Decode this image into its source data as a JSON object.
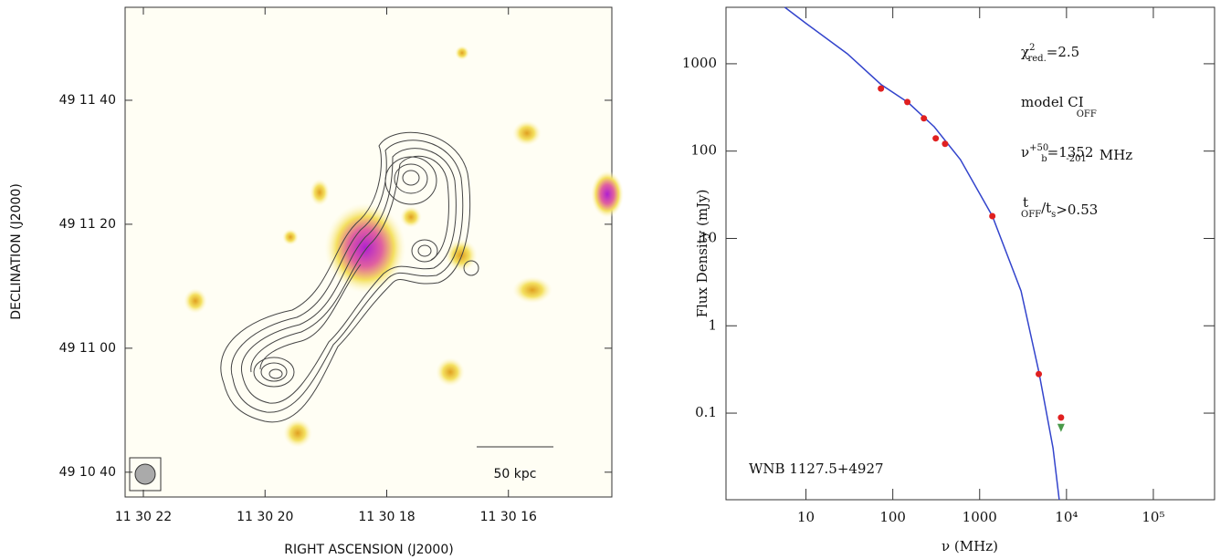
{
  "chart_data": [
    {
      "type": "image",
      "xlabel": "RIGHT ASCENSION (J2000)",
      "ylabel": "DECLINATION (J2000)",
      "xlim": [
        22.3,
        14.3
      ],
      "ylim": [
        36,
        115
      ],
      "xticks": [
        {
          "value": 22,
          "label": "11 30 22"
        },
        {
          "value": 20,
          "label": "11 30 20"
        },
        {
          "value": 18,
          "label": "11 30 18"
        },
        {
          "value": 16,
          "label": "11 30 16"
        }
      ],
      "yticks": [
        {
          "value": 40,
          "label": "49 10 40"
        },
        {
          "value": 60,
          "label": "49 11 00"
        },
        {
          "value": 80,
          "label": "49 11 20"
        },
        {
          "value": 100,
          "label": "49 11 40"
        }
      ],
      "scale_bar": "50 kpc"
    },
    {
      "type": "scatter",
      "log_x": true,
      "log_y": true,
      "xlabel": "ν (MHz)",
      "ylabel": "Flux Density (mJy)",
      "xlim": [
        1.2,
        507000
      ],
      "ylim": [
        0.0102,
        4430
      ],
      "xticks": [
        10,
        100,
        1000,
        {
          "value": 10000,
          "label": "10⁴"
        },
        {
          "value": 100000,
          "label": "10⁵"
        }
      ],
      "yticks": [
        0.1,
        1,
        10,
        100,
        1000
      ],
      "series": [
        {
          "marker": "line",
          "color": "#3344cc",
          "x": [
            5.7,
            10,
            30,
            73,
            150,
            300,
            600,
            1400,
            3000,
            4800,
            7000,
            8240
          ],
          "values": [
            4430,
            2900,
            1300,
            580,
            360,
            190,
            80,
            18,
            2.5,
            0.3,
            0.04,
            0.0102
          ]
        },
        {
          "marker": "dot",
          "color": "#e02020",
          "x": [
            73,
            147,
            228,
            312,
            400,
            1400,
            4800,
            8650
          ],
          "values": [
            520,
            365,
            237,
            140,
            121,
            18,
            0.28,
            0.089
          ]
        },
        {
          "marker": "triangle",
          "color": "#4a9a4a",
          "x": [
            8650
          ],
          "values": [
            0.067
          ]
        }
      ],
      "annotations": [
        [
          "χ",
          "2",
          "red.",
          "=2.5"
        ],
        [
          "model CI",
          "",
          "OFF",
          ""
        ],
        [
          "ν",
          "+50",
          "b",
          "=1352",
          "-201",
          "MHz"
        ],
        [
          "t",
          "",
          "OFF",
          "/t",
          "s",
          ">0.53"
        ]
      ],
      "source": "WNB 1127.5+4927"
    }
  ]
}
